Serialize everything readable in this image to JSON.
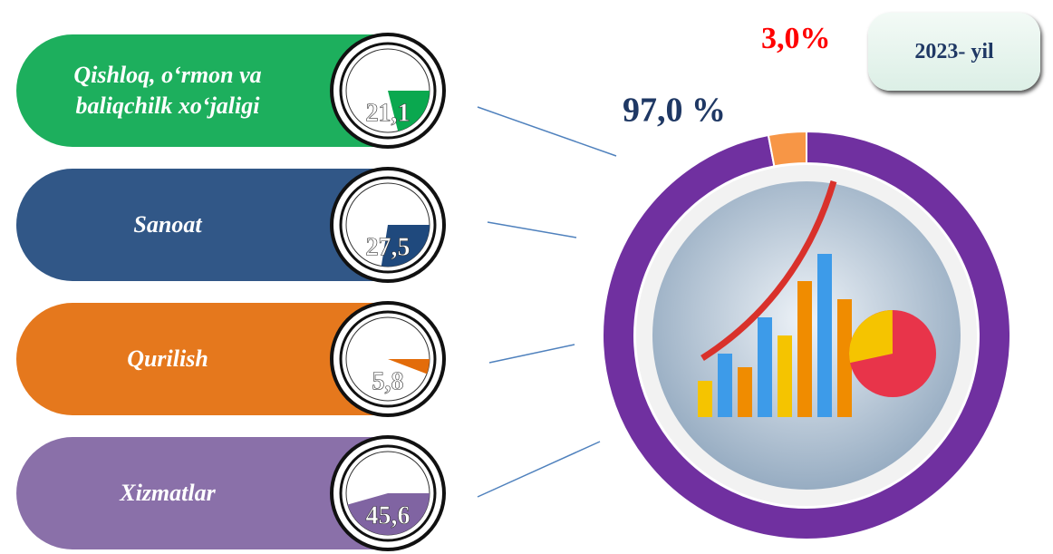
{
  "chart_data": [
    {
      "type": "donut",
      "title": "2023- yil",
      "values": [
        97.0,
        3.0
      ],
      "value_labels": [
        "97,0 %",
        "3,0%"
      ],
      "colors": [
        "#7030a0",
        "#f79646"
      ],
      "label_colors": [
        "#1f3864",
        "#ff0000"
      ]
    },
    {
      "type": "badge",
      "categories": [
        "Qishloq, o‘rmon va baliqchilk xo‘jaligi",
        "Sanoat",
        "Qurilish",
        "Xizmatlar"
      ],
      "values": [
        21.1,
        27.5,
        5.8,
        45.6
      ],
      "value_labels": [
        "21,1",
        "27,5",
        "5,8",
        "45,6"
      ],
      "colors": [
        "#0aa84f",
        "#1f497d",
        "#e36c0a",
        "#8064a2"
      ]
    }
  ]
}
